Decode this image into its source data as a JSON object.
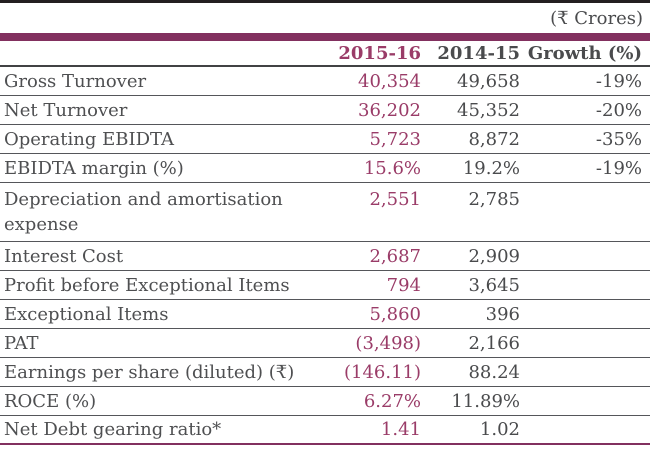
{
  "caption": "(₹ Crores)",
  "colors": {
    "accent_bar": "#82305f",
    "accent_value_text": "#9a3c68",
    "accent_header_text": "#8e2f5f",
    "dark_text": "#4a4b4d",
    "top_rule": "#231f20",
    "row_line": "#55565a"
  },
  "table": {
    "columns": [
      "",
      "2015-16",
      "2014-15",
      "Growth (%)"
    ],
    "rows": [
      {
        "label": "Gross Turnover",
        "fy2016": "40,354",
        "fy2015": "49,658",
        "growth": "-19%"
      },
      {
        "label": "Net Turnover",
        "fy2016": "36,202",
        "fy2015": "45,352",
        "growth": "-20%"
      },
      {
        "label": "Operating EBIDTA",
        "fy2016": "5,723",
        "fy2015": "8,872",
        "growth": "-35%"
      },
      {
        "label": "EBIDTA margin (%)",
        "fy2016": "15.6%",
        "fy2015": "19.2%",
        "growth": "-19%"
      },
      {
        "label": "Depreciation and amortisation expense",
        "fy2016": "2,551",
        "fy2015": "2,785",
        "growth": ""
      },
      {
        "label": "Interest Cost",
        "fy2016": "2,687",
        "fy2015": "2,909",
        "growth": ""
      },
      {
        "label": "Profit before Exceptional Items",
        "fy2016": "794",
        "fy2015": "3,645",
        "growth": ""
      },
      {
        "label": "Exceptional Items",
        "fy2016": "5,860",
        "fy2015": "396",
        "growth": ""
      },
      {
        "label": "PAT",
        "fy2016": "(3,498)",
        "fy2015": "2,166",
        "growth": ""
      },
      {
        "label": "Earnings per share (diluted) (₹)",
        "fy2016": "(146.11)",
        "fy2015": "88.24",
        "growth": ""
      },
      {
        "label": "ROCE (%)",
        "fy2016": "6.27%",
        "fy2015": "11.89%",
        "growth": ""
      },
      {
        "label": "Net Debt gearing ratio*",
        "fy2016": "1.41",
        "fy2015": "1.02",
        "growth": ""
      }
    ]
  }
}
